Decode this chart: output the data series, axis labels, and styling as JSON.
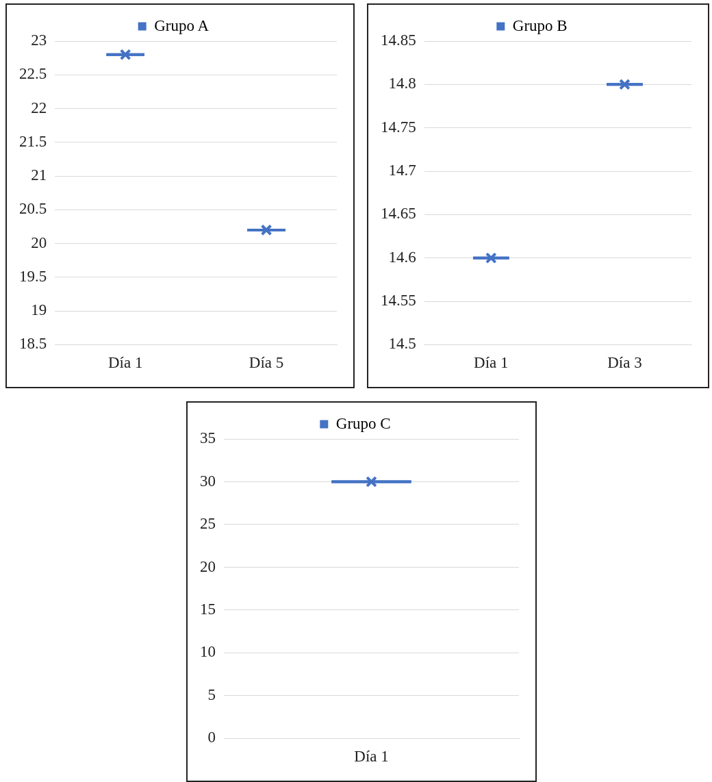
{
  "chart_data": [
    {
      "type": "box",
      "categories": [
        "Día 1",
        "Día 5"
      ],
      "series": [
        {
          "name": "Grupo A",
          "color": "#4472c4",
          "boxes": [
            {
              "low": 22.8,
              "q1": 22.8,
              "median": 22.8,
              "q3": 22.8,
              "high": 22.8,
              "mean": 22.8
            },
            {
              "low": 20.2,
              "q1": 20.2,
              "median": 20.2,
              "q3": 20.2,
              "high": 20.2,
              "mean": 20.2
            }
          ]
        }
      ],
      "ylim": [
        18.5,
        23
      ],
      "yticks": [
        18.5,
        19,
        19.5,
        20,
        20.5,
        21,
        21.5,
        22,
        22.5,
        23
      ],
      "grid": "y",
      "legend": "top",
      "marker": "cross"
    },
    {
      "type": "box",
      "categories": [
        "Día 1",
        "Día 3"
      ],
      "series": [
        {
          "name": "Grupo B",
          "color": "#4472c4",
          "boxes": [
            {
              "low": 14.6,
              "q1": 14.6,
              "median": 14.6,
              "q3": 14.6,
              "high": 14.6,
              "mean": 14.6
            },
            {
              "low": 14.8,
              "q1": 14.8,
              "median": 14.8,
              "q3": 14.8,
              "high": 14.8,
              "mean": 14.8
            }
          ]
        }
      ],
      "ylim": [
        14.5,
        14.85
      ],
      "yticks": [
        14.5,
        14.55,
        14.6,
        14.65,
        14.7,
        14.75,
        14.8,
        14.85
      ],
      "grid": "y",
      "legend": "top",
      "marker": "cross"
    },
    {
      "type": "box",
      "categories": [
        "Día 1"
      ],
      "series": [
        {
          "name": "Grupo C",
          "color": "#4472c4",
          "boxes": [
            {
              "low": 30,
              "q1": 30,
              "median": 30,
              "q3": 30,
              "high": 30,
              "mean": 30
            }
          ]
        }
      ],
      "ylim": [
        0,
        35
      ],
      "yticks": [
        0,
        5,
        10,
        15,
        20,
        25,
        30,
        35
      ],
      "grid": "y",
      "legend": "top",
      "marker": "cross"
    }
  ]
}
